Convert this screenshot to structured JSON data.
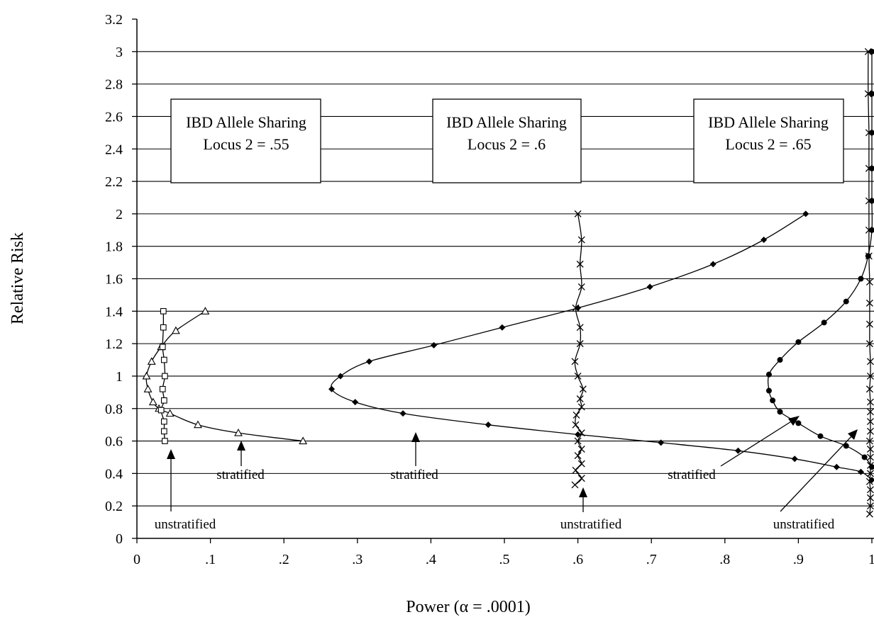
{
  "chart_data": {
    "type": "line",
    "title": "",
    "xlabel": "Power (α = .0001)",
    "ylabel": "Relative Risk",
    "xlim": [
      0,
      1
    ],
    "ylim": [
      0,
      3.2
    ],
    "x_ticks": [
      0,
      0.1,
      0.2,
      0.3,
      0.4,
      0.5,
      0.6,
      0.7,
      0.8,
      0.9,
      1
    ],
    "x_tick_labels": [
      "0",
      ".1",
      ".2",
      ".3",
      ".4",
      ".5",
      ".6",
      ".7",
      ".8",
      ".9",
      "1"
    ],
    "y_ticks": [
      0,
      0.2,
      0.4,
      0.6,
      0.8,
      1,
      1.2,
      1.4,
      1.6,
      1.8,
      2,
      2.2,
      2.4,
      2.6,
      2.8,
      3,
      3.2
    ],
    "y_tick_labels": [
      "0",
      "0.2",
      "0.4",
      "0.6",
      "0.8",
      "1",
      "1.2",
      "1.4",
      "1.6",
      "1.8",
      "2",
      "2.2",
      "2.4",
      "2.6",
      "2.8",
      "3",
      "3.2"
    ],
    "grid": "horizontal",
    "legend_boxes": [
      {
        "line1": "IBD Allele Sharing",
        "line2": "Locus 2 =  .55"
      },
      {
        "line1": "IBD Allele Sharing",
        "line2": "Locus 2 =  .6"
      },
      {
        "line1": "IBD Allele Sharing",
        "line2": "Locus 2 =  .65"
      }
    ],
    "annotations": {
      "a1": "unstratified",
      "a2": "stratified",
      "a3": "stratified",
      "a4": "unstratified",
      "a5": "stratified",
      "a6": "unstratified"
    },
    "series": [
      {
        "marker": "triangle",
        "points": [
          [
            0.226,
            0.6
          ],
          [
            0.138,
            0.65
          ],
          [
            0.083,
            0.7
          ],
          [
            0.045,
            0.77
          ],
          [
            0.03,
            0.8
          ],
          [
            0.022,
            0.84
          ],
          [
            0.015,
            0.92
          ],
          [
            0.013,
            1.0
          ],
          [
            0.02,
            1.09
          ],
          [
            0.033,
            1.18
          ],
          [
            0.053,
            1.28
          ],
          [
            0.093,
            1.4
          ]
        ]
      },
      {
        "marker": "square",
        "points": [
          [
            0.038,
            0.6
          ],
          [
            0.037,
            0.66
          ],
          [
            0.037,
            0.72
          ],
          [
            0.033,
            0.79
          ],
          [
            0.037,
            0.85
          ],
          [
            0.035,
            0.92
          ],
          [
            0.038,
            1.0
          ],
          [
            0.037,
            1.1
          ],
          [
            0.035,
            1.18
          ],
          [
            0.036,
            1.3
          ],
          [
            0.036,
            1.4
          ]
        ]
      },
      {
        "marker": "diamond",
        "points": [
          [
            1.0,
            0.36
          ],
          [
            0.985,
            0.41
          ],
          [
            0.952,
            0.44
          ],
          [
            0.895,
            0.49
          ],
          [
            0.818,
            0.54
          ],
          [
            0.713,
            0.59
          ],
          [
            0.6,
            0.64
          ],
          [
            0.478,
            0.7
          ],
          [
            0.362,
            0.77
          ],
          [
            0.297,
            0.84
          ],
          [
            0.265,
            0.92
          ],
          [
            0.277,
            1.0
          ],
          [
            0.316,
            1.09
          ],
          [
            0.404,
            1.19
          ],
          [
            0.497,
            1.3
          ],
          [
            0.6,
            1.42
          ],
          [
            0.698,
            1.55
          ],
          [
            0.784,
            1.69
          ],
          [
            0.853,
            1.84
          ],
          [
            0.91,
            2.0
          ]
        ]
      },
      {
        "marker": "cross",
        "points": [
          [
            0.596,
            0.33
          ],
          [
            0.605,
            0.37
          ],
          [
            0.597,
            0.42
          ],
          [
            0.605,
            0.46
          ],
          [
            0.6,
            0.51
          ],
          [
            0.605,
            0.55
          ],
          [
            0.6,
            0.6
          ],
          [
            0.605,
            0.65
          ],
          [
            0.597,
            0.7
          ],
          [
            0.598,
            0.76
          ],
          [
            0.605,
            0.81
          ],
          [
            0.603,
            0.86
          ],
          [
            0.607,
            0.92
          ],
          [
            0.6,
            1.0
          ],
          [
            0.596,
            1.09
          ],
          [
            0.603,
            1.2
          ],
          [
            0.603,
            1.3
          ],
          [
            0.597,
            1.42
          ],
          [
            0.605,
            1.55
          ],
          [
            0.603,
            1.69
          ],
          [
            0.605,
            1.84
          ],
          [
            0.6,
            2.0
          ]
        ]
      },
      {
        "marker": "circle",
        "points": [
          [
            1.0,
            0.44
          ],
          [
            0.99,
            0.5
          ],
          [
            0.965,
            0.57
          ],
          [
            0.93,
            0.63
          ],
          [
            0.9,
            0.71
          ],
          [
            0.875,
            0.78
          ],
          [
            0.865,
            0.85
          ],
          [
            0.86,
            0.91
          ],
          [
            0.86,
            1.01
          ],
          [
            0.875,
            1.1
          ],
          [
            0.9,
            1.21
          ],
          [
            0.935,
            1.33
          ],
          [
            0.965,
            1.46
          ],
          [
            0.985,
            1.6
          ],
          [
            0.995,
            1.74
          ],
          [
            1.0,
            1.9
          ],
          [
            1.0,
            2.08
          ],
          [
            1.0,
            2.28
          ],
          [
            1.0,
            2.5
          ],
          [
            1.0,
            2.74
          ],
          [
            1.0,
            3.0
          ]
        ]
      },
      {
        "marker": "cross",
        "points": [
          [
            0.997,
            0.15
          ],
          [
            0.998,
            0.2
          ],
          [
            0.998,
            0.25
          ],
          [
            0.998,
            0.3
          ],
          [
            0.997,
            0.35
          ],
          [
            0.998,
            0.4
          ],
          [
            0.998,
            0.45
          ],
          [
            0.998,
            0.5
          ],
          [
            0.998,
            0.55
          ],
          [
            0.997,
            0.6
          ],
          [
            0.998,
            0.66
          ],
          [
            0.998,
            0.72
          ],
          [
            0.998,
            0.78
          ],
          [
            0.998,
            0.84
          ],
          [
            0.997,
            0.92
          ],
          [
            0.998,
            1.0
          ],
          [
            0.998,
            1.09
          ],
          [
            0.997,
            1.2
          ],
          [
            0.997,
            1.32
          ],
          [
            0.997,
            1.45
          ],
          [
            0.997,
            1.58
          ],
          [
            0.996,
            1.74
          ],
          [
            0.996,
            1.9
          ],
          [
            0.996,
            2.08
          ],
          [
            0.996,
            2.28
          ],
          [
            0.996,
            2.5
          ],
          [
            0.995,
            2.74
          ],
          [
            0.995,
            3.0
          ]
        ]
      }
    ]
  }
}
